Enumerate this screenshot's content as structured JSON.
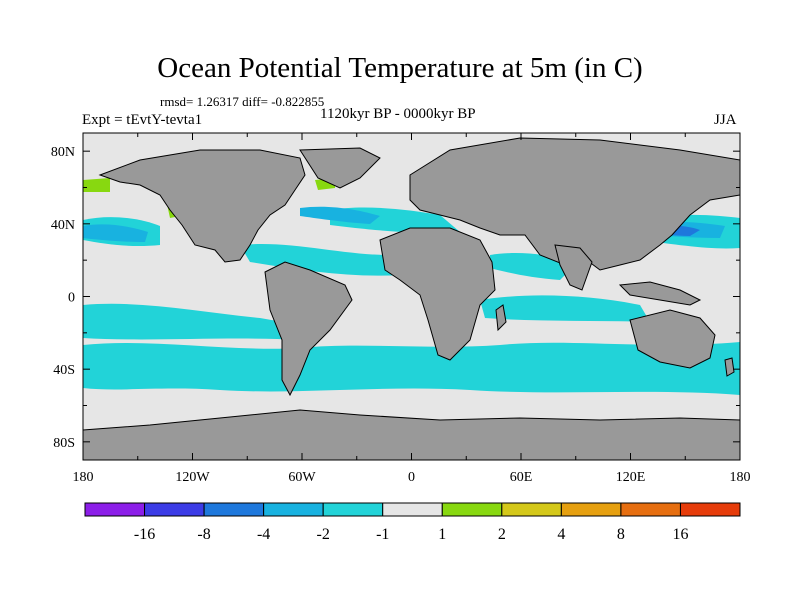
{
  "title": "Ocean Potential Temperature at 5m (in C)",
  "stats_line": "rmsd= 1.26317 diff= -0.822855",
  "experiment": "Expt = tEvtY-tevta1",
  "period": "1120kyr BP - 0000kyr BP",
  "season": "JJA",
  "colors": {
    "land": "#999999",
    "near_zero": "#e6e6e6",
    "neg1_to_neg2": "#22d3d8",
    "neg2_to_neg4": "#18b2e0",
    "neg4_to_neg8": "#1e78dc",
    "pos1_to_pos2": "#88d810"
  },
  "chart_data": {
    "type": "heatmap",
    "title": "Ocean Potential Temperature at 5m (in C)",
    "projection": "cylindrical equidistant",
    "x_axis": {
      "range": [
        -180,
        180
      ],
      "ticks": [
        "180",
        "120W",
        "60W",
        "0",
        "60E",
        "120E",
        "180"
      ]
    },
    "y_axis": {
      "range": [
        -90,
        90
      ],
      "ticks": [
        "80N",
        "40N",
        "0",
        "40S",
        "80S"
      ]
    },
    "colorbar": {
      "levels": [
        "-16",
        "-8",
        "-4",
        "-2",
        "-1",
        "1",
        "2",
        "4",
        "8",
        "16"
      ],
      "colors": [
        "#8c1ee8",
        "#3c3ce6",
        "#1e78dc",
        "#18b2e0",
        "#22d3d8",
        "#e6e6e6",
        "#88d810",
        "#d4c81a",
        "#e6a010",
        "#e66e10",
        "#e63c0a"
      ]
    }
  }
}
